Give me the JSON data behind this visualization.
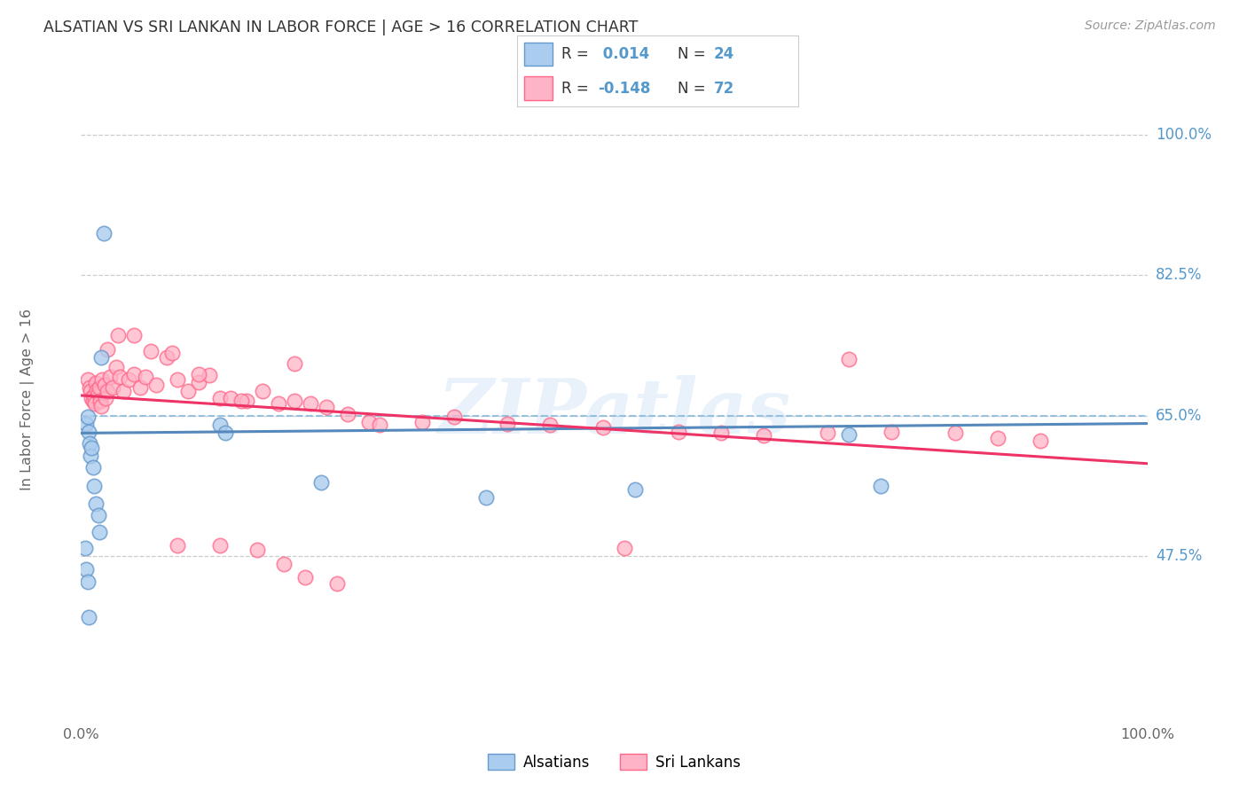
{
  "title": "ALSATIAN VS SRI LANKAN IN LABOR FORCE | AGE > 16 CORRELATION CHART",
  "source": "Source: ZipAtlas.com",
  "ylabel": "In Labor Force | Age > 16",
  "watermark": "ZIPatlas",
  "blue_face": "#AACCEE",
  "blue_edge": "#6699CC",
  "pink_face": "#FFB3C6",
  "pink_edge": "#FF6688",
  "blue_line": "#5588BB",
  "pink_line": "#EE3366",
  "blue_dash": "#88BBDD",
  "tick_color": "#5599CC",
  "grid_color": "#CCCCCC",
  "title_color": "#333333",
  "source_color": "#999999",
  "axis_label_color": "#666666",
  "ytick_vals": [
    0.475,
    0.65,
    0.825,
    1.0
  ],
  "ytick_labels": [
    "47.5%",
    "65.0%",
    "82.5%",
    "100.0%"
  ],
  "xmin": 0.0,
  "xmax": 1.0,
  "ymin": 0.28,
  "ymax": 1.06,
  "als_x": [
    0.005,
    0.006,
    0.007,
    0.008,
    0.009,
    0.01,
    0.011,
    0.012,
    0.014,
    0.016,
    0.017,
    0.019,
    0.021,
    0.13,
    0.135,
    0.225,
    0.004,
    0.005,
    0.006,
    0.007,
    0.38,
    0.52,
    0.72,
    0.75
  ],
  "als_y": [
    0.64,
    0.648,
    0.63,
    0.615,
    0.6,
    0.61,
    0.585,
    0.562,
    0.54,
    0.526,
    0.505,
    0.722,
    0.877,
    0.638,
    0.628,
    0.566,
    0.484,
    0.458,
    0.442,
    0.398,
    0.548,
    0.558,
    0.626,
    0.562
  ],
  "sri_x": [
    0.006,
    0.008,
    0.009,
    0.01,
    0.011,
    0.012,
    0.013,
    0.014,
    0.015,
    0.016,
    0.017,
    0.018,
    0.019,
    0.02,
    0.022,
    0.023,
    0.025,
    0.027,
    0.03,
    0.033,
    0.036,
    0.04,
    0.045,
    0.05,
    0.055,
    0.06,
    0.07,
    0.08,
    0.09,
    0.1,
    0.11,
    0.12,
    0.13,
    0.14,
    0.155,
    0.17,
    0.185,
    0.2,
    0.215,
    0.23,
    0.25,
    0.27,
    0.025,
    0.035,
    0.05,
    0.065,
    0.085,
    0.11,
    0.15,
    0.2,
    0.28,
    0.32,
    0.35,
    0.4,
    0.44,
    0.49,
    0.51,
    0.56,
    0.6,
    0.64,
    0.7,
    0.72,
    0.76,
    0.82,
    0.86,
    0.9,
    0.165,
    0.19,
    0.21,
    0.24,
    0.13,
    0.09
  ],
  "sri_y": [
    0.695,
    0.685,
    0.68,
    0.672,
    0.668,
    0.675,
    0.665,
    0.69,
    0.682,
    0.678,
    0.685,
    0.668,
    0.662,
    0.695,
    0.688,
    0.672,
    0.68,
    0.698,
    0.685,
    0.71,
    0.698,
    0.68,
    0.695,
    0.702,
    0.685,
    0.698,
    0.688,
    0.722,
    0.695,
    0.68,
    0.692,
    0.7,
    0.672,
    0.672,
    0.668,
    0.68,
    0.665,
    0.668,
    0.665,
    0.66,
    0.652,
    0.642,
    0.732,
    0.75,
    0.75,
    0.73,
    0.728,
    0.702,
    0.668,
    0.715,
    0.638,
    0.642,
    0.648,
    0.64,
    0.638,
    0.635,
    0.485,
    0.63,
    0.628,
    0.625,
    0.628,
    0.72,
    0.63,
    0.628,
    0.622,
    0.618,
    0.482,
    0.465,
    0.448,
    0.44,
    0.488,
    0.488
  ]
}
